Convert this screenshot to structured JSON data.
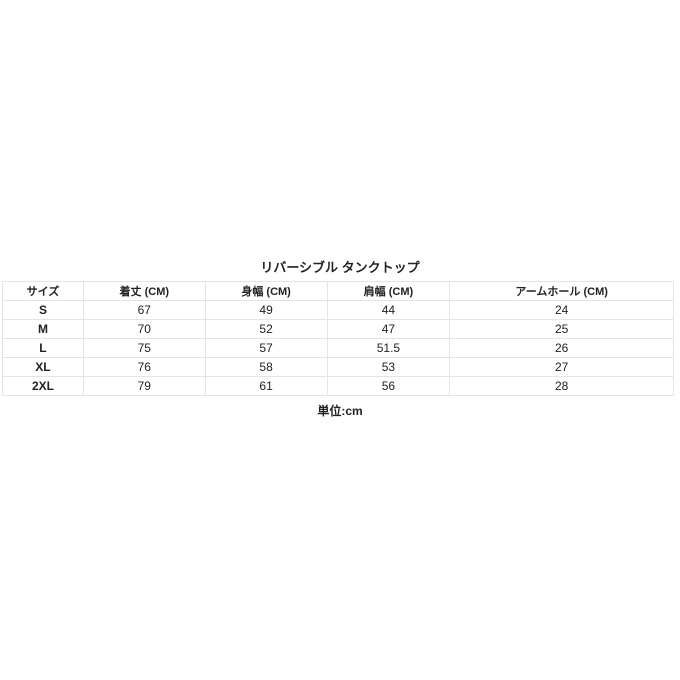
{
  "title": "リバーシブル タンクトップ",
  "table": {
    "headers": [
      "サイズ",
      "着丈 (CM)",
      "身幅 (CM)",
      "肩幅 (CM)",
      "アームホール (CM)"
    ],
    "rows": [
      [
        "S",
        "67",
        "49",
        "44",
        "24"
      ],
      [
        "M",
        "70",
        "52",
        "47",
        "25"
      ],
      [
        "L",
        "75",
        "57",
        "51.5",
        "26"
      ],
      [
        "XL",
        "76",
        "58",
        "53",
        "27"
      ],
      [
        "2XL",
        "79",
        "61",
        "56",
        "28"
      ]
    ]
  },
  "unit": "単位:cm"
}
